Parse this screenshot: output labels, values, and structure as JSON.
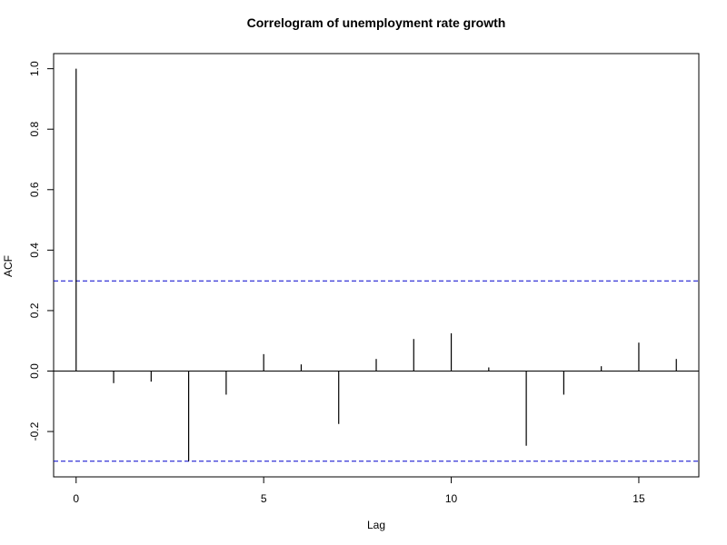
{
  "chart_data": {
    "type": "bar",
    "title": "Correlogram of unemployment rate growth",
    "xlabel": "Lag",
    "ylabel": "ACF",
    "xlim": [
      -0.6,
      16.6
    ],
    "ylim": [
      -0.35,
      1.05
    ],
    "x_ticks": [
      0,
      5,
      10,
      15
    ],
    "y_ticks": [
      -0.2,
      0.0,
      0.2,
      0.4,
      0.6,
      0.8,
      1.0
    ],
    "y_tick_labels": [
      "-0.2",
      "0.0",
      "0.2",
      "0.4",
      "0.6",
      "0.8",
      "1.0"
    ],
    "confidence_bounds": [
      0.298,
      -0.298
    ],
    "confidence_color": "#0000cc",
    "series": [
      {
        "x": [
          0,
          1,
          2,
          3,
          4,
          5,
          6,
          7,
          8,
          9,
          10,
          11,
          12,
          13,
          14,
          15,
          16
        ],
        "values": [
          1.0,
          -0.04,
          -0.035,
          -0.298,
          -0.078,
          0.056,
          0.022,
          -0.175,
          0.04,
          0.106,
          0.125,
          0.012,
          -0.247,
          -0.078,
          0.016,
          0.094,
          0.04
        ]
      }
    ],
    "grid": false,
    "zero_line": true
  }
}
